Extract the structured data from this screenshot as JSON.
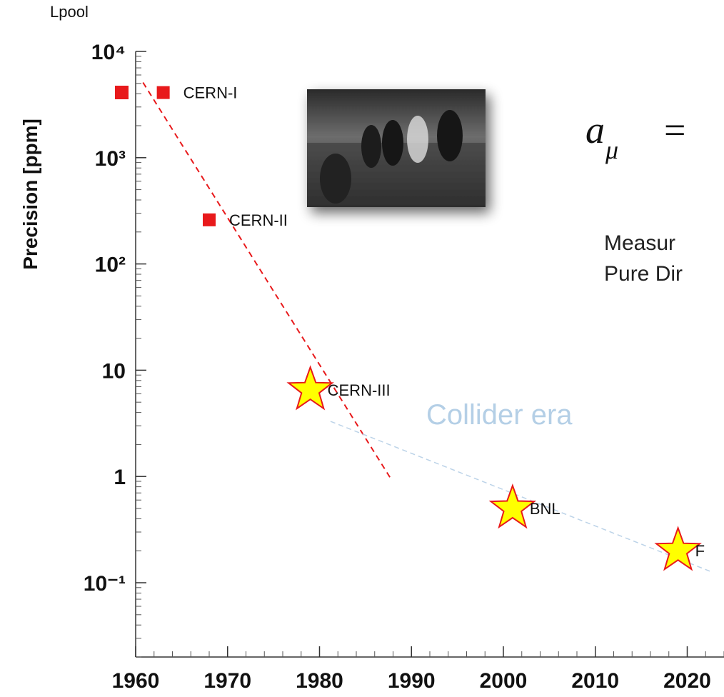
{
  "header_note": "Lpool",
  "chart_data": {
    "type": "scatter",
    "y_label": "Precision [ppm]",
    "log_y": true,
    "xlim": [
      1960,
      2024
    ],
    "ylim": [
      0.02,
      10000
    ],
    "xticks": [
      1960,
      1970,
      1980,
      1990,
      2000,
      2010,
      2020
    ],
    "yticks": [
      {
        "value": 10000,
        "label": "10⁴"
      },
      {
        "value": 1000,
        "label": "10³"
      },
      {
        "value": 100,
        "label": "10²"
      },
      10,
      1,
      {
        "value": 0.1,
        "label": "10⁻¹"
      }
    ],
    "series": [
      {
        "marker": "square",
        "color": "#e8191b",
        "x": [
          1963,
          1968
        ],
        "values": [
          4100,
          260
        ],
        "labels": [
          "CERN-I",
          "CERN-II"
        ]
      },
      {
        "marker": "star",
        "color": "#ffff00",
        "edge_color": "#e8191b",
        "x": [
          1979,
          2001,
          2019
        ],
        "values": [
          6.5,
          0.5,
          0.2
        ],
        "labels": [
          "CERN-III",
          "BNL",
          "F"
        ]
      }
    ],
    "lines": [
      {
        "color": "#e8191b",
        "x": [
          1960.8,
          1987.8
        ],
        "values": [
          5100,
          0.94
        ]
      },
      {
        "color": "#bcd3e8",
        "x": [
          1981.2,
          2022.8
        ],
        "values": [
          3.3,
          0.125
        ]
      }
    ],
    "annotation": "Collider era",
    "annotation_color": "#b4cfe6"
  },
  "side_text": {
    "formula_base": "a",
    "formula_sub": "μ",
    "formula_rel": "=",
    "line1": "Measur",
    "line2": "Pure Dir"
  }
}
